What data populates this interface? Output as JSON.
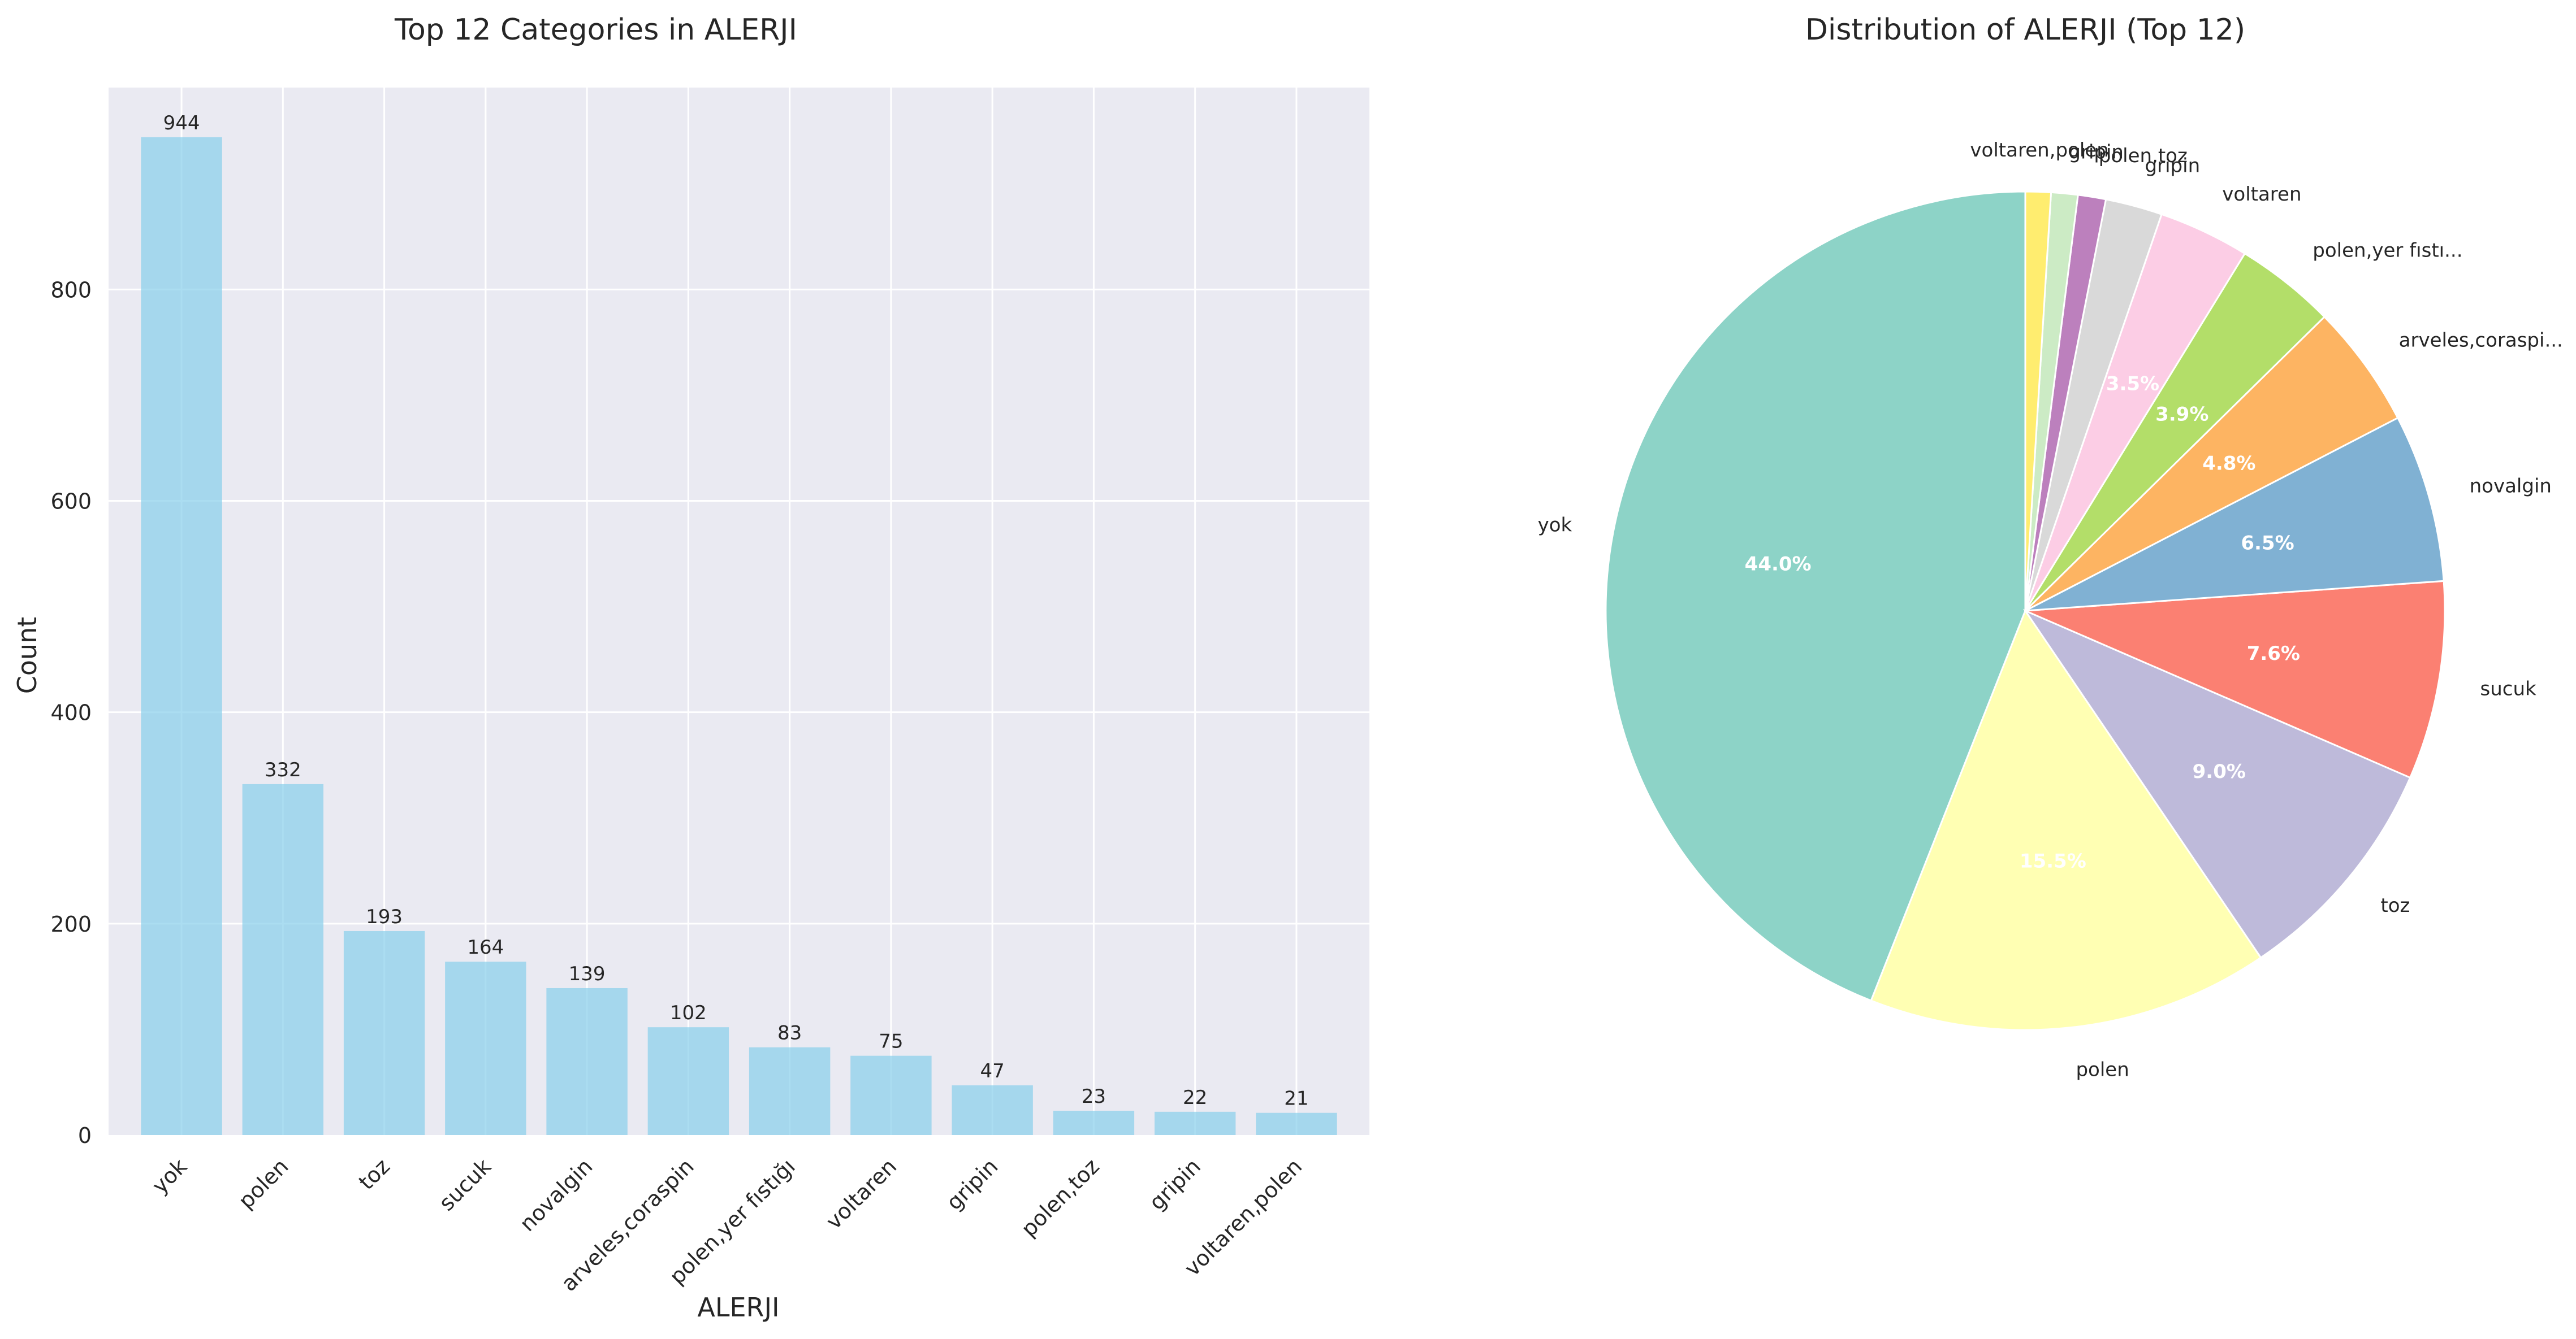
{
  "chart_data": [
    {
      "type": "bar",
      "title": "Top 12 Categories in ALERJI",
      "xlabel": "ALERJI",
      "ylabel": "Count",
      "categories": [
        "yok",
        "polen",
        "toz",
        "sucuk",
        "novalgin",
        "arveles,coraspin",
        "polen,yer fıstığı",
        "voltaren",
        "gripin",
        "polen,toz",
        "gripin",
        "voltaren,polen"
      ],
      "values": [
        944,
        332,
        193,
        164,
        139,
        102,
        83,
        75,
        47,
        23,
        22,
        21
      ],
      "value_labels": [
        "944",
        "332",
        "193",
        "164",
        "139",
        "102",
        "83",
        "75",
        "47",
        "23",
        "22",
        "21"
      ],
      "ylim": [
        0,
        991
      ],
      "yticks": [
        0,
        200,
        400,
        600,
        800
      ],
      "ytick_labels": [
        "0",
        "200",
        "400",
        "600",
        "800"
      ],
      "grid": true,
      "bar_color": "#87ceeb",
      "background_color": "#eaeaf2"
    },
    {
      "type": "pie",
      "title": "Distribution of ALERJI (Top 12)",
      "labels": [
        "yok",
        "polen",
        "toz",
        "sucuk",
        "novalgin",
        "arveles,coraspi...",
        "polen,yer fıstı...",
        "voltaren",
        "gripin",
        "polen,toz",
        "gripin",
        "voltaren,polen"
      ],
      "values": [
        944,
        332,
        193,
        164,
        139,
        102,
        83,
        75,
        47,
        23,
        22,
        21
      ],
      "percent_labels": [
        "44.0%",
        "15.5%",
        "9.0%",
        "7.6%",
        "6.5%",
        "4.8%",
        "3.9%",
        "3.5%",
        "",
        "",
        "",
        ""
      ],
      "colors": [
        "#8dd3c7",
        "#ffffb3",
        "#bebada",
        "#fb8072",
        "#80b1d3",
        "#fdb462",
        "#b3de69",
        "#fccde5",
        "#d9d9d9",
        "#bc80bd",
        "#ccebc5",
        "#ffed6f"
      ],
      "start_angle": 90,
      "direction": "counterclockwise"
    }
  ]
}
